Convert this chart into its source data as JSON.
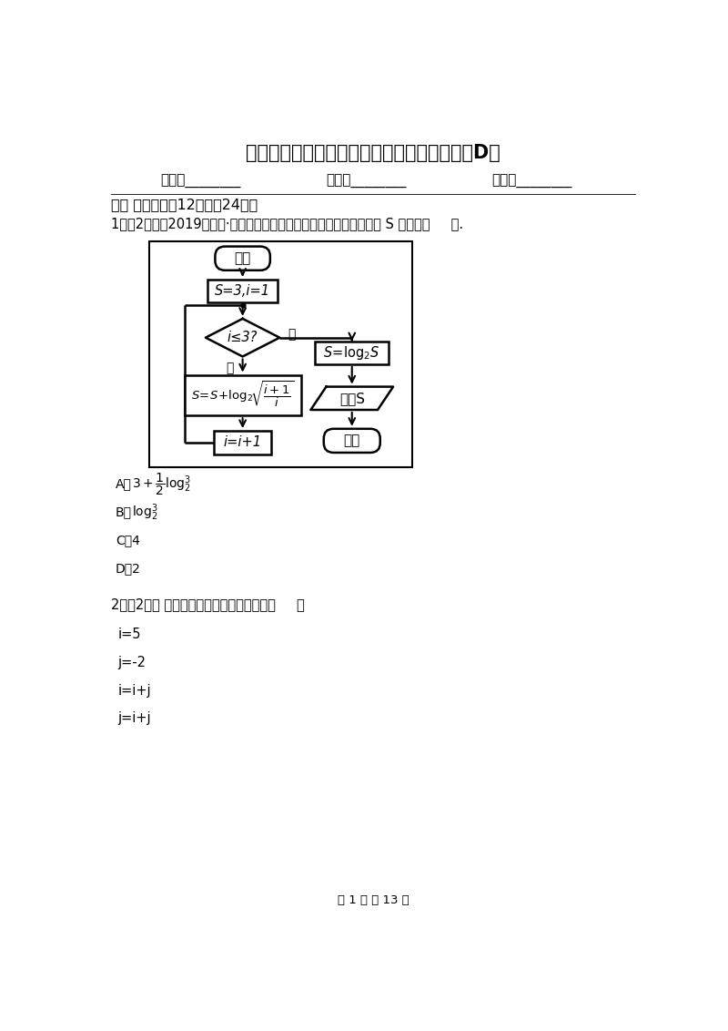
{
  "title": "重庆市数学高二下学期文数第一次月考模拟卷D卷",
  "name_label": "姓名：________",
  "class_label": "班级：________",
  "score_label": "成绩：________",
  "section1": "一、 单选题（共12题；共24分）",
  "q1_prefix": "1．（2分）（2019高三上·番禺月考）执行如图所示的程序框图，输出 S 的值为（     ）.",
  "q2_text": "2．（2分） 下列语句执行后输出的结果为（     ）",
  "q2_code": [
    "i=5",
    "j=-2",
    "i=i+j",
    "j=i+j"
  ],
  "page_footer": "第 1 页 共 13 页",
  "bg_color": "#ffffff",
  "text_color": "#000000"
}
